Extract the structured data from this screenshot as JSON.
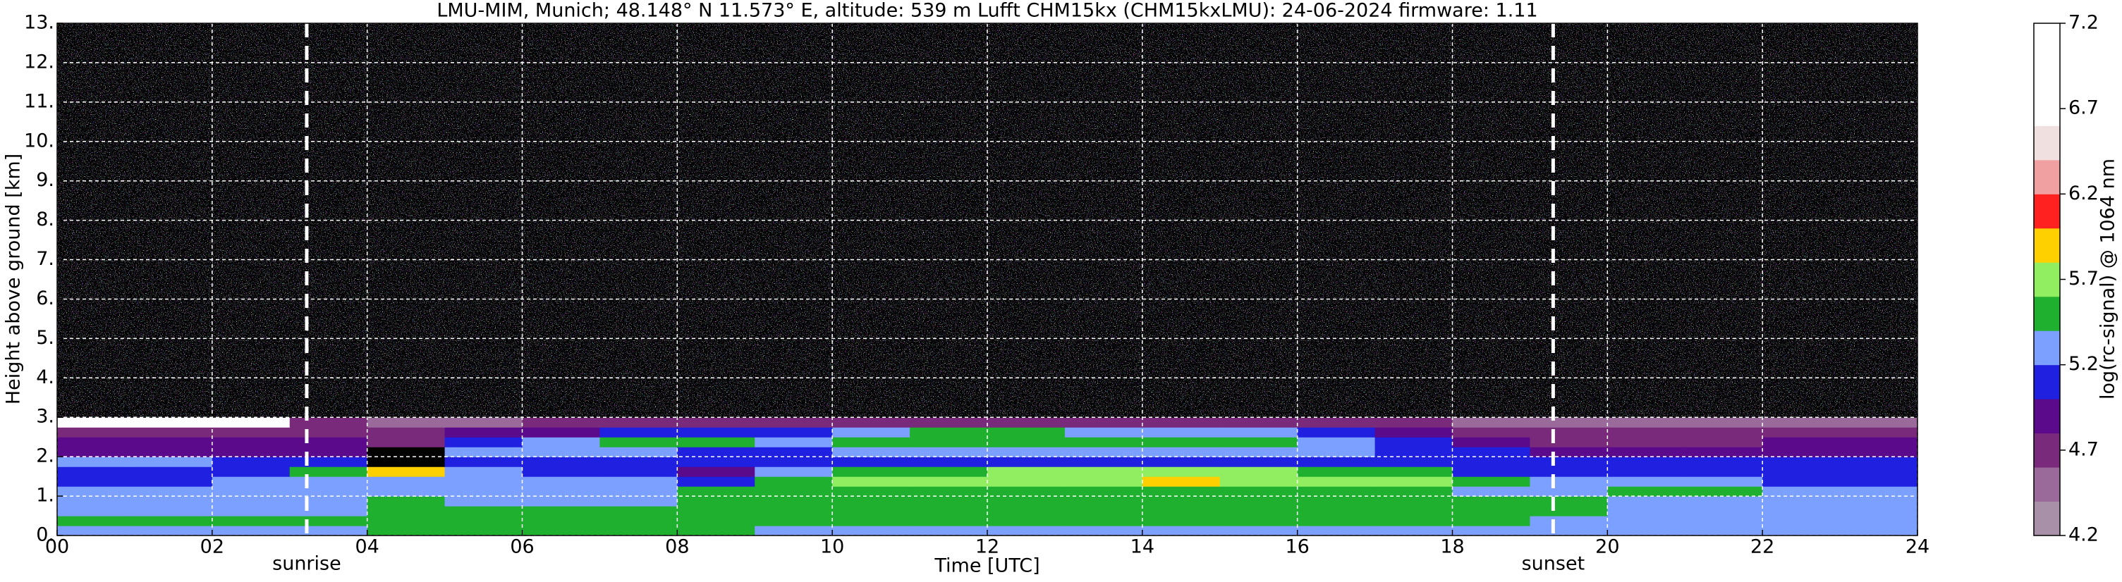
{
  "chart_data": {
    "type": "heatmap",
    "title": "LMU-MIM, Munich; 48.148° N 11.573° E, altitude: 539 m    Lufft CHM15kx (CHM15kxLMU): 24-06-2024    firmware: 1.11",
    "xlabel": "Time [UTC]",
    "ylabel": "Height above ground [km]",
    "xlim": [
      0,
      24
    ],
    "ylim": [
      0,
      13
    ],
    "xticks": [
      {
        "value": 0,
        "label": "00"
      },
      {
        "value": 2,
        "label": "02"
      },
      {
        "value": 4,
        "label": "04"
      },
      {
        "value": 6,
        "label": "06"
      },
      {
        "value": 8,
        "label": "08"
      },
      {
        "value": 10,
        "label": "10"
      },
      {
        "value": 12,
        "label": "12"
      },
      {
        "value": 14,
        "label": "14"
      },
      {
        "value": 16,
        "label": "16"
      },
      {
        "value": 18,
        "label": "18"
      },
      {
        "value": 20,
        "label": "20"
      },
      {
        "value": 22,
        "label": "22"
      },
      {
        "value": 24,
        "label": "24"
      }
    ],
    "yticks": [
      {
        "value": 0,
        "label": "0."
      },
      {
        "value": 1,
        "label": "1."
      },
      {
        "value": 2,
        "label": "2."
      },
      {
        "value": 3,
        "label": "3."
      },
      {
        "value": 4,
        "label": "4."
      },
      {
        "value": 5,
        "label": "5."
      },
      {
        "value": 6,
        "label": "6."
      },
      {
        "value": 7,
        "label": "7."
      },
      {
        "value": 8,
        "label": "8."
      },
      {
        "value": 9,
        "label": "9."
      },
      {
        "value": 10,
        "label": "10."
      },
      {
        "value": 11,
        "label": "11."
      },
      {
        "value": 12,
        "label": "12."
      },
      {
        "value": 13,
        "label": "13."
      }
    ],
    "grid": true,
    "x_edges": [
      0,
      1,
      2,
      3,
      4,
      5,
      6,
      7,
      8,
      9,
      10,
      11,
      12,
      13,
      14,
      15,
      16,
      17,
      18,
      19,
      20,
      21,
      22,
      23,
      24
    ],
    "y_edges": [
      0,
      0.25,
      0.5,
      0.75,
      1,
      1.25,
      1.5,
      1.75,
      2,
      2.25,
      2.5,
      2.75,
      3,
      4,
      6,
      8,
      10,
      13
    ],
    "z": [
      [
        5.3,
        5.3,
        5.3,
        5.3,
        5.5,
        5.5,
        5.5,
        5.5,
        5.5,
        5.3,
        5.3,
        5.3,
        5.3,
        5.3,
        5.3,
        5.3,
        5.3,
        5.3,
        5.3,
        5.3,
        5.3,
        5.3,
        5.3,
        5.3
      ],
      [
        5.5,
        5.5,
        5.5,
        5.4,
        5.5,
        5.5,
        5.5,
        5.5,
        5.5,
        5.5,
        5.5,
        5.5,
        5.5,
        5.5,
        5.5,
        5.5,
        5.5,
        5.5,
        5.5,
        5.3,
        5.3,
        5.3,
        5.3,
        5.3
      ],
      [
        5.3,
        5.3,
        5.3,
        5.3,
        5.5,
        5.5,
        5.5,
        5.5,
        5.5,
        5.5,
        5.5,
        5.5,
        5.5,
        5.5,
        5.5,
        5.5,
        5.5,
        5.5,
        5.5,
        5.5,
        5.3,
        5.3,
        5.3,
        5.3
      ],
      [
        5.3,
        5.3,
        5.3,
        5.3,
        5.5,
        5.3,
        5.3,
        5.3,
        5.5,
        5.5,
        5.5,
        5.5,
        5.5,
        5.5,
        5.5,
        5.5,
        5.5,
        5.5,
        5.5,
        5.5,
        5.3,
        5.3,
        5.3,
        5.3
      ],
      [
        5.3,
        5.3,
        5.3,
        5.3,
        5.3,
        5.3,
        5.3,
        5.3,
        5.5,
        5.5,
        5.5,
        5.5,
        5.5,
        5.5,
        5.5,
        5.5,
        5.5,
        5.5,
        5.3,
        5.3,
        5.5,
        5.5,
        5.3,
        5.3
      ],
      [
        5.1,
        5.1,
        5.3,
        5.3,
        5.3,
        5.3,
        5.3,
        5.3,
        5.1,
        5.5,
        5.7,
        5.7,
        5.7,
        5.8,
        5.9,
        5.8,
        5.7,
        5.7,
        5.5,
        5.3,
        5.3,
        5.3,
        5.1,
        5.1
      ],
      [
        5.1,
        5.1,
        5.1,
        5.5,
        5.9,
        5.3,
        5.1,
        5.1,
        4.9,
        5.3,
        5.5,
        5.5,
        5.7,
        5.7,
        5.7,
        5.7,
        5.5,
        5.5,
        5.1,
        5.1,
        5.1,
        5.1,
        5.1,
        5.1
      ],
      [
        5.3,
        5.3,
        5.1,
        5.1,
        4.0,
        5.1,
        5.1,
        5.1,
        5.1,
        5.1,
        5.1,
        5.1,
        5.1,
        5.1,
        5.1,
        5.1,
        5.1,
        5.1,
        5.1,
        5.1,
        5.1,
        5.1,
        5.1,
        5.1
      ],
      [
        4.9,
        4.9,
        4.9,
        4.9,
        4.0,
        5.3,
        5.3,
        5.3,
        5.1,
        5.1,
        5.3,
        5.3,
        5.3,
        5.3,
        5.3,
        5.3,
        5.3,
        5.1,
        5.1,
        4.9,
        4.9,
        4.9,
        4.9,
        4.9
      ],
      [
        4.9,
        4.9,
        4.9,
        4.9,
        4.7,
        5.1,
        5.3,
        5.5,
        5.5,
        5.3,
        5.5,
        5.5,
        5.5,
        5.5,
        5.5,
        5.5,
        5.3,
        5.1,
        4.9,
        4.7,
        4.7,
        4.7,
        4.9,
        4.9
      ],
      [
        4.7,
        4.7,
        4.7,
        4.7,
        4.7,
        4.9,
        4.9,
        5.1,
        5.1,
        5.1,
        5.3,
        5.5,
        5.5,
        5.3,
        5.3,
        5.3,
        5.1,
        4.9,
        4.7,
        4.7,
        4.7,
        4.7,
        4.7,
        4.7
      ],
      [
        6.8,
        6.8,
        6.8,
        4.7,
        4.5,
        4.5,
        4.7,
        4.7,
        4.7,
        4.7,
        4.7,
        4.7,
        4.7,
        4.7,
        4.7,
        4.7,
        4.7,
        4.7,
        4.5,
        4.5,
        4.5,
        4.5,
        4.5,
        4.5
      ],
      [
        4.0,
        4.0,
        4.0,
        4.0,
        4.0,
        4.0,
        4.0,
        4.0,
        4.0,
        4.0,
        4.0,
        4.0,
        4.0,
        4.0,
        4.0,
        4.0,
        4.0,
        4.0,
        4.0,
        4.0,
        4.0,
        4.0,
        4.0,
        4.0
      ],
      [
        4.0,
        4.0,
        4.0,
        4.0,
        4.0,
        4.0,
        4.0,
        4.0,
        4.0,
        4.0,
        4.0,
        4.0,
        4.0,
        4.0,
        4.0,
        4.0,
        4.0,
        4.0,
        4.0,
        4.0,
        4.0,
        4.0,
        4.0,
        4.0
      ],
      [
        4.0,
        4.0,
        4.0,
        4.0,
        4.0,
        4.0,
        4.0,
        4.0,
        4.0,
        4.0,
        4.0,
        4.0,
        4.0,
        4.0,
        4.0,
        4.0,
        4.0,
        4.0,
        4.0,
        4.0,
        4.0,
        4.0,
        4.0,
        4.0
      ],
      [
        4.0,
        4.0,
        4.0,
        4.0,
        4.0,
        4.0,
        4.0,
        4.0,
        4.0,
        4.0,
        4.0,
        4.0,
        4.0,
        4.0,
        4.0,
        4.0,
        4.0,
        4.0,
        4.0,
        4.0,
        4.0,
        4.0,
        4.0,
        4.0
      ],
      [
        4.0,
        4.0,
        4.0,
        4.0,
        4.0,
        4.0,
        4.0,
        4.0,
        4.0,
        4.0,
        4.0,
        4.0,
        4.0,
        4.0,
        4.0,
        4.0,
        4.0,
        4.0,
        4.0,
        4.0,
        4.0,
        4.0,
        4.0,
        4.0
      ]
    ],
    "clim": [
      4.2,
      7.2
    ],
    "colors": [
      "#a890a8",
      "#9a6a9a",
      "#7a2a7a",
      "#5a0a8a",
      "#2020e0",
      "#7ca0ff",
      "#20b030",
      "#90ee60",
      "#ffd000",
      "#ff2020",
      "#f0a0a0",
      "#f0e0e0",
      "#ffffff",
      "#ffffff",
      "#ffffff"
    ],
    "under_color": "#000000",
    "colorbar_label": "log(rc-signal) @ 1064 nm",
    "colorbar_ticks": [
      4.2,
      4.7,
      5.2,
      5.7,
      6.2,
      6.7,
      7.2
    ],
    "annotations": [
      {
        "text": "sunrise",
        "x": 3.22
      },
      {
        "text": "sunset",
        "x": 19.3
      }
    ]
  }
}
